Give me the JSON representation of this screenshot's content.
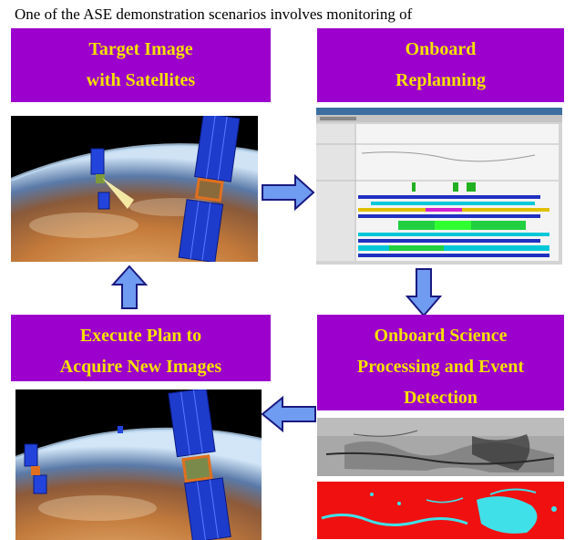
{
  "intro_text": "One of the ASE demonstration scenarios involves monitoring of",
  "boxes": {
    "target": {
      "line1": "Target Image",
      "line2": "with Satellites"
    },
    "replan": {
      "line1": "Onboard",
      "line2": "Replanning"
    },
    "execute": {
      "line1": "Execute Plan to",
      "line2": "Acquire New Images"
    },
    "science": {
      "line1": "Onboard Science",
      "line2": "Processing and Event",
      "line3": "Detection"
    }
  },
  "colors": {
    "box_bg": "#9b00cc",
    "box_text": "#f6e000",
    "arrow_fill": "#6f9bf0",
    "arrow_stroke": "#1a1a80"
  }
}
